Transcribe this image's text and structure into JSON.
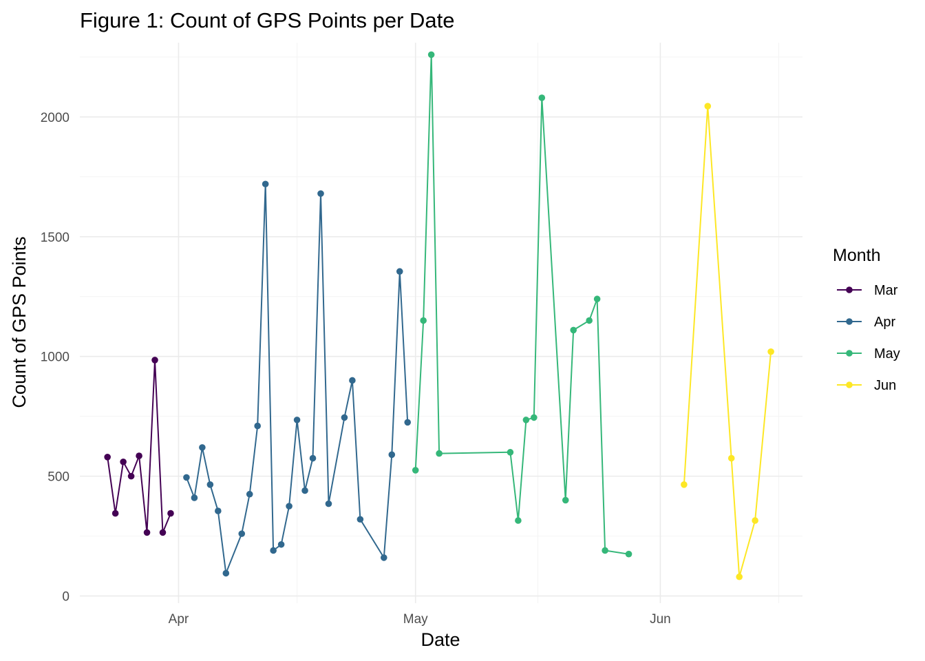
{
  "chart_data": {
    "type": "line",
    "title": "Figure 1: Count of GPS Points per Date",
    "xlabel": "Date",
    "ylabel": "Count of GPS Points",
    "x_unit": "day of year (Mar 1 = 60)",
    "xlim": [
      78.5,
      170
    ],
    "ylim": [
      -30,
      2310
    ],
    "x_ticks": [
      {
        "value": 91,
        "label": "Apr"
      },
      {
        "value": 121,
        "label": "May"
      },
      {
        "value": 152,
        "label": "Jun"
      }
    ],
    "x_minor_ticks": [
      106,
      136.5,
      167
    ],
    "y_ticks": [
      {
        "value": 0,
        "label": "0"
      },
      {
        "value": 500,
        "label": "500"
      },
      {
        "value": 1000,
        "label": "1000"
      },
      {
        "value": 1500,
        "label": "1500"
      },
      {
        "value": 2000,
        "label": "2000"
      }
    ],
    "y_minor_ticks": [
      250,
      750,
      1250,
      1750,
      2250
    ],
    "grid": true,
    "legend": {
      "title": "Month",
      "placement": "right"
    },
    "series": [
      {
        "name": "Mar",
        "color": "#440154",
        "points": [
          {
            "x": 82,
            "y": 580
          },
          {
            "x": 83,
            "y": 345
          },
          {
            "x": 84,
            "y": 560
          },
          {
            "x": 85,
            "y": 500
          },
          {
            "x": 86,
            "y": 585
          },
          {
            "x": 87,
            "y": 265
          },
          {
            "x": 88,
            "y": 985
          },
          {
            "x": 89,
            "y": 265
          },
          {
            "x": 90,
            "y": 345
          }
        ]
      },
      {
        "name": "Apr",
        "color": "#31688e",
        "points": [
          {
            "x": 92,
            "y": 495
          },
          {
            "x": 93,
            "y": 410
          },
          {
            "x": 94,
            "y": 620
          },
          {
            "x": 95,
            "y": 465
          },
          {
            "x": 96,
            "y": 355
          },
          {
            "x": 97,
            "y": 95
          },
          {
            "x": 99,
            "y": 260
          },
          {
            "x": 100,
            "y": 425
          },
          {
            "x": 101,
            "y": 710
          },
          {
            "x": 102,
            "y": 1720
          },
          {
            "x": 103,
            "y": 190
          },
          {
            "x": 104,
            "y": 215
          },
          {
            "x": 105,
            "y": 375
          },
          {
            "x": 106,
            "y": 735
          },
          {
            "x": 107,
            "y": 440
          },
          {
            "x": 108,
            "y": 575
          },
          {
            "x": 109,
            "y": 1680
          },
          {
            "x": 110,
            "y": 385
          },
          {
            "x": 112,
            "y": 745
          },
          {
            "x": 113,
            "y": 900
          },
          {
            "x": 114,
            "y": 320
          },
          {
            "x": 117,
            "y": 160
          },
          {
            "x": 118,
            "y": 590
          },
          {
            "x": 119,
            "y": 1355
          },
          {
            "x": 120,
            "y": 725
          }
        ]
      },
      {
        "name": "May",
        "color": "#35b779",
        "points": [
          {
            "x": 121,
            "y": 525
          },
          {
            "x": 122,
            "y": 1150
          },
          {
            "x": 123,
            "y": 2260
          },
          {
            "x": 124,
            "y": 595
          },
          {
            "x": 133,
            "y": 600
          },
          {
            "x": 134,
            "y": 315
          },
          {
            "x": 135,
            "y": 735
          },
          {
            "x": 136,
            "y": 745
          },
          {
            "x": 137,
            "y": 2080
          },
          {
            "x": 140,
            "y": 400
          },
          {
            "x": 141,
            "y": 1110
          },
          {
            "x": 143,
            "y": 1150
          },
          {
            "x": 144,
            "y": 1240
          },
          {
            "x": 145,
            "y": 190
          },
          {
            "x": 148,
            "y": 175
          }
        ]
      },
      {
        "name": "Jun",
        "color": "#fde725",
        "points": [
          {
            "x": 155,
            "y": 465
          },
          {
            "x": 158,
            "y": 2045
          },
          {
            "x": 161,
            "y": 575
          },
          {
            "x": 162,
            "y": 80
          },
          {
            "x": 164,
            "y": 315
          },
          {
            "x": 166,
            "y": 1020
          }
        ]
      }
    ]
  }
}
